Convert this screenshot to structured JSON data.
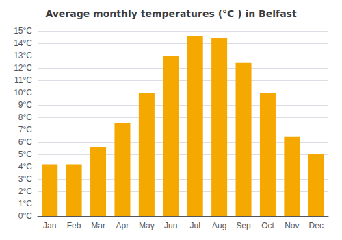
{
  "chart_data": {
    "type": "bar",
    "title": "Average monthly temperatures (°C ) in Belfast",
    "categories": [
      "Jan",
      "Feb",
      "Mar",
      "Apr",
      "May",
      "Jun",
      "Jul",
      "Aug",
      "Sep",
      "Oct",
      "Nov",
      "Dec"
    ],
    "values": [
      4.2,
      4.2,
      5.6,
      7.5,
      10.0,
      13.0,
      14.6,
      14.4,
      12.4,
      10.0,
      6.4,
      5.0
    ],
    "color": "#F5A800",
    "ylim": [
      0,
      15
    ],
    "yticks": [
      {
        "value": 0,
        "label": "0°C"
      },
      {
        "value": 1,
        "label": "1°C"
      },
      {
        "value": 2,
        "label": "2°C"
      },
      {
        "value": 3,
        "label": "3°C"
      },
      {
        "value": 4,
        "label": "4°C"
      },
      {
        "value": 5,
        "label": "5°C"
      },
      {
        "value": 6,
        "label": "6°C"
      },
      {
        "value": 7,
        "label": "7°C"
      },
      {
        "value": 8,
        "label": "8°C"
      },
      {
        "value": 9,
        "label": "9°C"
      },
      {
        "value": 10,
        "label": "10°C"
      },
      {
        "value": 11,
        "label": "11°C"
      },
      {
        "value": 12,
        "label": "12°C"
      },
      {
        "value": 13,
        "label": "13°C"
      },
      {
        "value": 14,
        "label": "14°C"
      },
      {
        "value": 15,
        "label": "15°C"
      }
    ],
    "grid": true
  }
}
